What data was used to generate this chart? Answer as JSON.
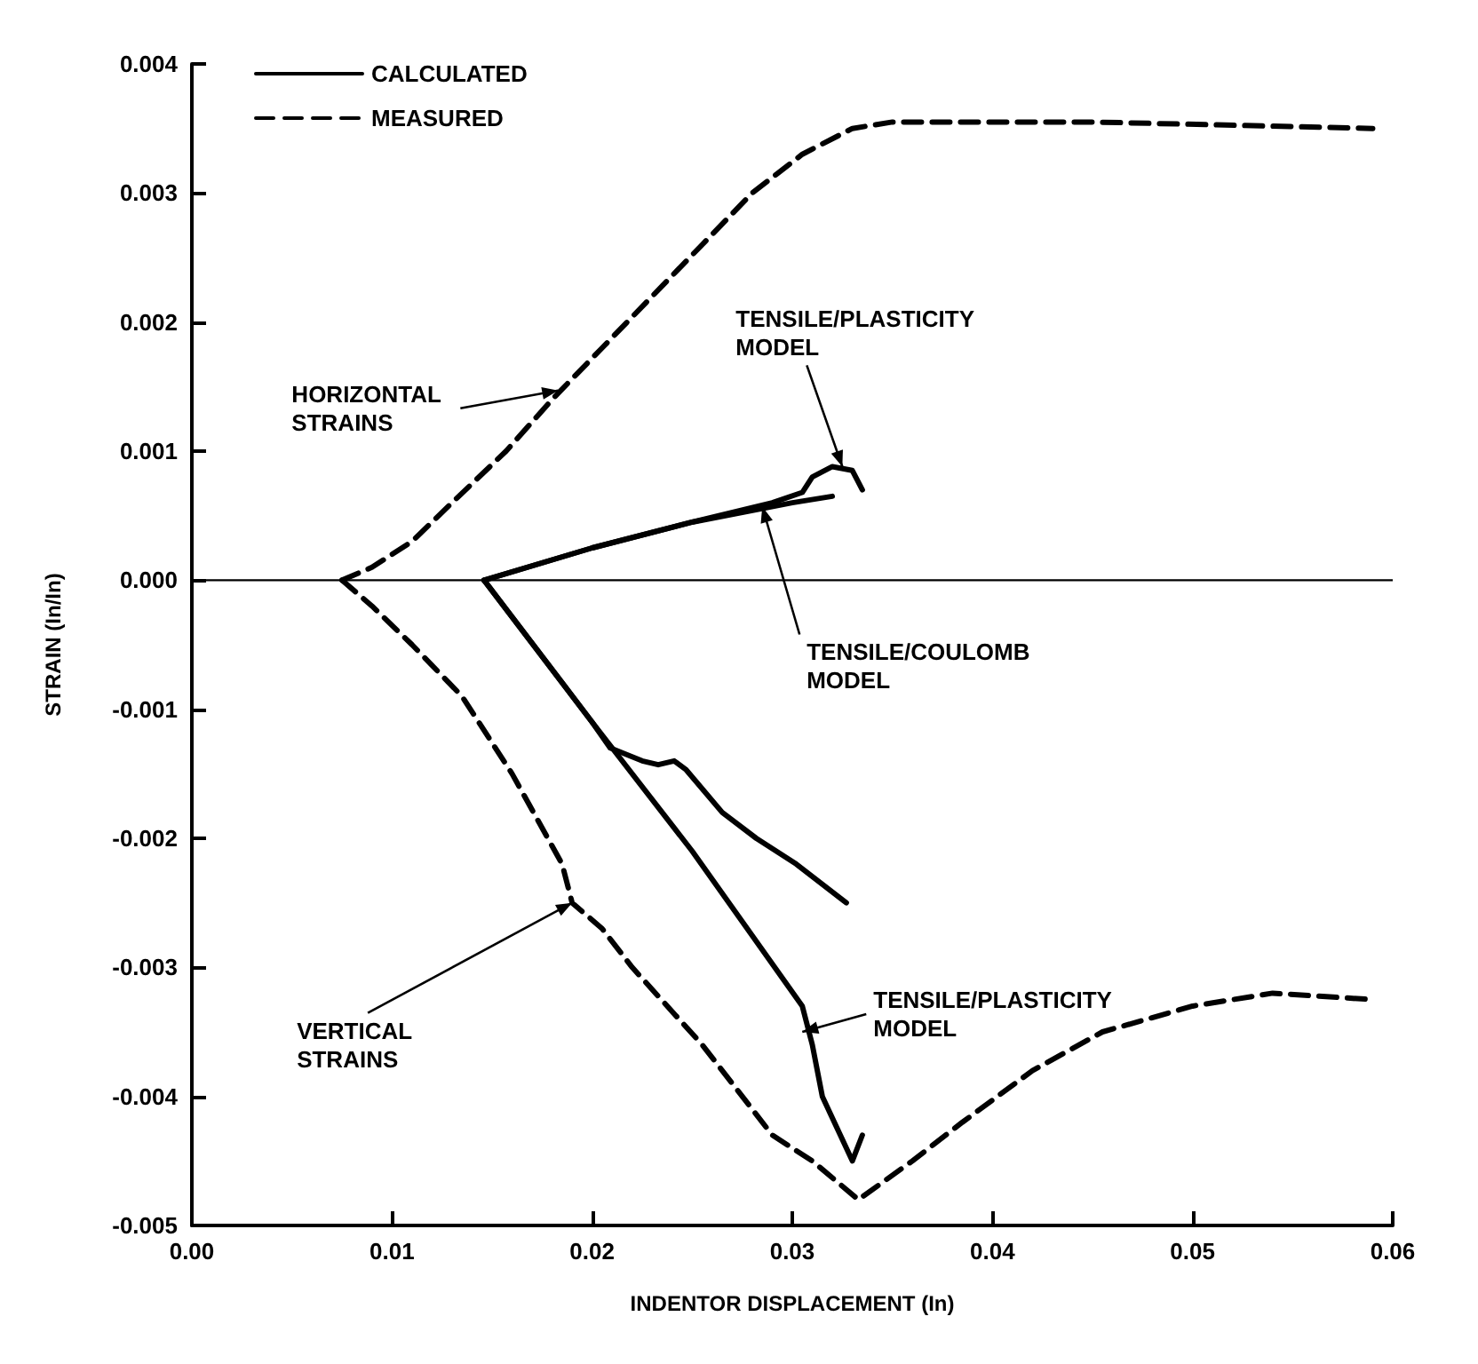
{
  "chart_data": {
    "type": "line",
    "xlabel": "INDENTOR DISPLACEMENT (In)",
    "ylabel": "STRAIN (In/In)",
    "xlim": [
      0,
      0.06
    ],
    "xticks": [
      {
        "value": 0,
        "label": "0.00"
      },
      {
        "value": 0.01,
        "label": "0.01"
      },
      {
        "value": 0.02,
        "label": "0.02"
      },
      {
        "value": 0.03,
        "label": "0.03"
      },
      {
        "value": 0.04,
        "label": "0.04"
      },
      {
        "value": 0.05,
        "label": "0.05"
      },
      {
        "value": 0.06,
        "label": "0.06"
      }
    ],
    "ylim": [
      -0.005,
      0.004
    ],
    "yticks": [
      {
        "value": -0.005,
        "label": "-0.005"
      },
      {
        "value": -0.004,
        "label": "-0.004"
      },
      {
        "value": -0.003,
        "label": "-0.003"
      },
      {
        "value": -0.002,
        "label": "-0.002"
      },
      {
        "value": -0.001,
        "label": "-0.001"
      },
      {
        "value": 0,
        "label": "0.000"
      },
      {
        "value": 0.001,
        "label": "0.001"
      },
      {
        "value": 0.002,
        "label": "0.002"
      },
      {
        "value": 0.003,
        "label": "0.003"
      },
      {
        "value": 0.004,
        "label": "0.004"
      }
    ],
    "grid": false,
    "legend": "top left",
    "marker": "none",
    "ref_lines": [
      {
        "axis": "y",
        "value": 0,
        "color": "#000000"
      }
    ],
    "series": [
      {
        "name": "CALCULATED",
        "color": "#000000",
        "line_style": "solid",
        "x": [
          0.0146,
          0.02,
          0.025,
          0.03,
          0.032
        ],
        "values": [
          0,
          0.00025,
          0.00045,
          0.0006,
          0.00065
        ]
      },
      {
        "name": "MEASURED",
        "color": "#000000",
        "line_style": "dashed",
        "x": [
          0.0075,
          0.009,
          0.011,
          0.013,
          0.0157,
          0.018,
          0.0205,
          0.023,
          0.0255,
          0.028,
          0.0305,
          0.033,
          0.035,
          0.045,
          0.059
        ],
        "values": [
          0,
          0.0001,
          0.0003,
          0.0006,
          0.001,
          0.0014,
          0.0018,
          0.0022,
          0.0026,
          0.003,
          0.0033,
          0.0035,
          0.00355,
          0.00355,
          0.0035
        ]
      },
      {
        "color": "#000000",
        "line_style": "solid",
        "x": [
          0.0146,
          0.02,
          0.025,
          0.029,
          0.0305,
          0.031,
          0.032,
          0.033,
          0.0335
        ],
        "values": [
          0,
          0.00025,
          0.00045,
          0.0006,
          0.00068,
          0.0008,
          0.00088,
          0.00085,
          0.0007
        ]
      },
      {
        "color": "#000000",
        "line_style": "solid",
        "x": [
          0.0146,
          0.02,
          0.0209,
          0.0225,
          0.0233,
          0.0241,
          0.0247,
          0.0265,
          0.0282,
          0.0302,
          0.0327
        ],
        "values": [
          0,
          -0.0011,
          -0.0013,
          -0.0014,
          -0.00143,
          -0.0014,
          -0.00147,
          -0.0018,
          -0.002,
          -0.0022,
          -0.0025
        ]
      },
      {
        "color": "#000000",
        "line_style": "solid",
        "x": [
          0.0146,
          0.02,
          0.025,
          0.0305,
          0.031,
          0.0315,
          0.033,
          0.0335
        ],
        "values": [
          0,
          -0.0011,
          -0.0021,
          -0.0033,
          -0.0036,
          -0.004,
          -0.0045,
          -0.0043
        ]
      },
      {
        "color": "#000000",
        "line_style": "dashed",
        "x": [
          0.0075,
          0.009,
          0.011,
          0.0135,
          0.016,
          0.0185,
          0.019,
          0.0205,
          0.022,
          0.0255,
          0.029,
          0.031,
          0.0333,
          0.036,
          0.0385,
          0.042,
          0.0455,
          0.05,
          0.054,
          0.059
        ],
        "values": [
          0,
          -0.0002,
          -0.0005,
          -0.0009,
          -0.0015,
          -0.0022,
          -0.0025,
          -0.0027,
          -0.003,
          -0.0036,
          -0.0043,
          -0.0045,
          -0.0048,
          -0.0045,
          -0.0042,
          -0.0038,
          -0.0035,
          -0.0033,
          -0.0032,
          -0.00325
        ]
      }
    ],
    "annotations": [
      {
        "text": "HORIZONTAL\nSTRAINS",
        "x": 0.0183,
        "y": 0.00147
      },
      {
        "text": "TENSILE/PLASTICITY\nMODEL",
        "x": 0.0325,
        "y": 0.00088
      },
      {
        "text": "TENSILE/COULOMB\nMODEL",
        "x": 0.0285,
        "y": 0.00057
      },
      {
        "text": "VERTICAL\nSTRAINS",
        "x": 0.019,
        "y": -0.0025
      },
      {
        "text": "TENSILE/PLASTICITY\nMODEL",
        "x": 0.0305,
        "y": -0.0035
      }
    ]
  }
}
